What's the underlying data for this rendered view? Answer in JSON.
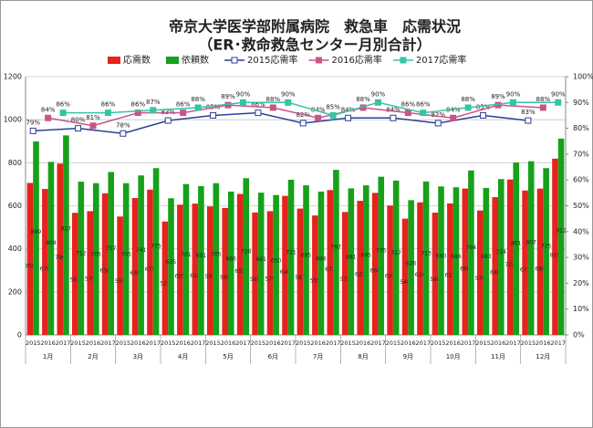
{
  "chart_data": {
    "type": "bar-line",
    "title": "帝京大学医学部附属病院　救急車　応需状況",
    "subtitle": "（ER･救命救急センター月別合計）",
    "categories": [
      "2015",
      "2016",
      "2017",
      "2015",
      "2016",
      "2017",
      "2015",
      "2016",
      "2017",
      "2015",
      "2016",
      "2017",
      "2015",
      "2016",
      "2017",
      "2015",
      "2016",
      "2017",
      "2015",
      "2016",
      "2017",
      "2015",
      "2016",
      "2017",
      "2015",
      "2016",
      "2017",
      "2015",
      "2016",
      "2017",
      "2015",
      "2016",
      "2017",
      "2015",
      "2016",
      "2017"
    ],
    "months": [
      "1月",
      "2月",
      "3月",
      "4月",
      "5月",
      "6月",
      "7月",
      "8月",
      "9月",
      "10月",
      "11月",
      "12月"
    ],
    "bar_series": [
      {
        "name": "応需数",
        "color": "#e8221c",
        "values": [
          706,
          678,
          796,
          567,
          575,
          658,
          550,
          636,
          675,
          527,
          605,
          610,
          597,
          590,
          655,
          569,
          575,
          646,
          587,
          555,
          673,
          571,
          623,
          660,
          601,
          540,
          616,
          568,
          611,
          680,
          578,
          640,
          722,
          671,
          680,
          819
        ]
      },
      {
        "name": "依頼数",
        "color": "#17a01a",
        "values": [
          899,
          804,
          927,
          712,
          705,
          757,
          705,
          741,
          775,
          635,
          701,
          691,
          705,
          666,
          728,
          661,
          650,
          721,
          695,
          666,
          767,
          681,
          695,
          735,
          717,
          626,
          713,
          690,
          686,
          764,
          683,
          724,
          801,
          807,
          775,
          912
        ]
      }
    ],
    "line_series": [
      {
        "name": "2015応需率",
        "color": "#2e3f96",
        "offset": 0,
        "axis": "y2",
        "values": [
          79,
          80,
          78,
          83,
          85,
          86,
          82,
          84,
          84,
          82,
          85,
          83
        ],
        "value_labels": [
          "79%",
          "80%",
          "78%",
          "83%",
          "85%",
          "86%",
          "82%",
          "84%",
          "84%",
          "82%",
          "85%",
          "83%"
        ]
      },
      {
        "name": "2016応需率",
        "color": "#c8558a",
        "offset": 1,
        "axis": "y2",
        "values": [
          84,
          81,
          86,
          86,
          89,
          88,
          84,
          88,
          86,
          84,
          89,
          88
        ],
        "value_labels": [
          "84%",
          "81%",
          "86%",
          "86%",
          "89%",
          "88%",
          "84%",
          "88%",
          "86%",
          "84%",
          "89%",
          "88%"
        ]
      },
      {
        "name": "2017応需率",
        "color": "#35c4a4",
        "offset": 2,
        "axis": "y2",
        "values": [
          86,
          86,
          87,
          88,
          90,
          90,
          85,
          90,
          86,
          88,
          90,
          90
        ],
        "value_labels": [
          "86%",
          "86%",
          "87%",
          "88%",
          "90%",
          "90%",
          "85%",
          "90%",
          "86%",
          "88%",
          "90%",
          "90%"
        ]
      }
    ],
    "ylim": [
      0,
      1200
    ],
    "yticks": [
      0,
      200,
      400,
      600,
      800,
      1000,
      1200
    ],
    "y2lim": [
      0,
      100
    ],
    "y2ticks": [
      {
        "value": 0,
        "label": "0%"
      },
      {
        "value": 10,
        "label": "10%"
      },
      {
        "value": 20,
        "label": "20%"
      },
      {
        "value": 30,
        "label": "30%"
      },
      {
        "value": 40,
        "label": "40%"
      },
      {
        "value": 50,
        "label": "50%"
      },
      {
        "value": 60,
        "label": "60%"
      },
      {
        "value": 70,
        "label": "70%"
      },
      {
        "value": 80,
        "label": "80%"
      },
      {
        "value": 90,
        "label": "90%"
      },
      {
        "value": 100,
        "label": "100%"
      }
    ],
    "grid": true
  }
}
